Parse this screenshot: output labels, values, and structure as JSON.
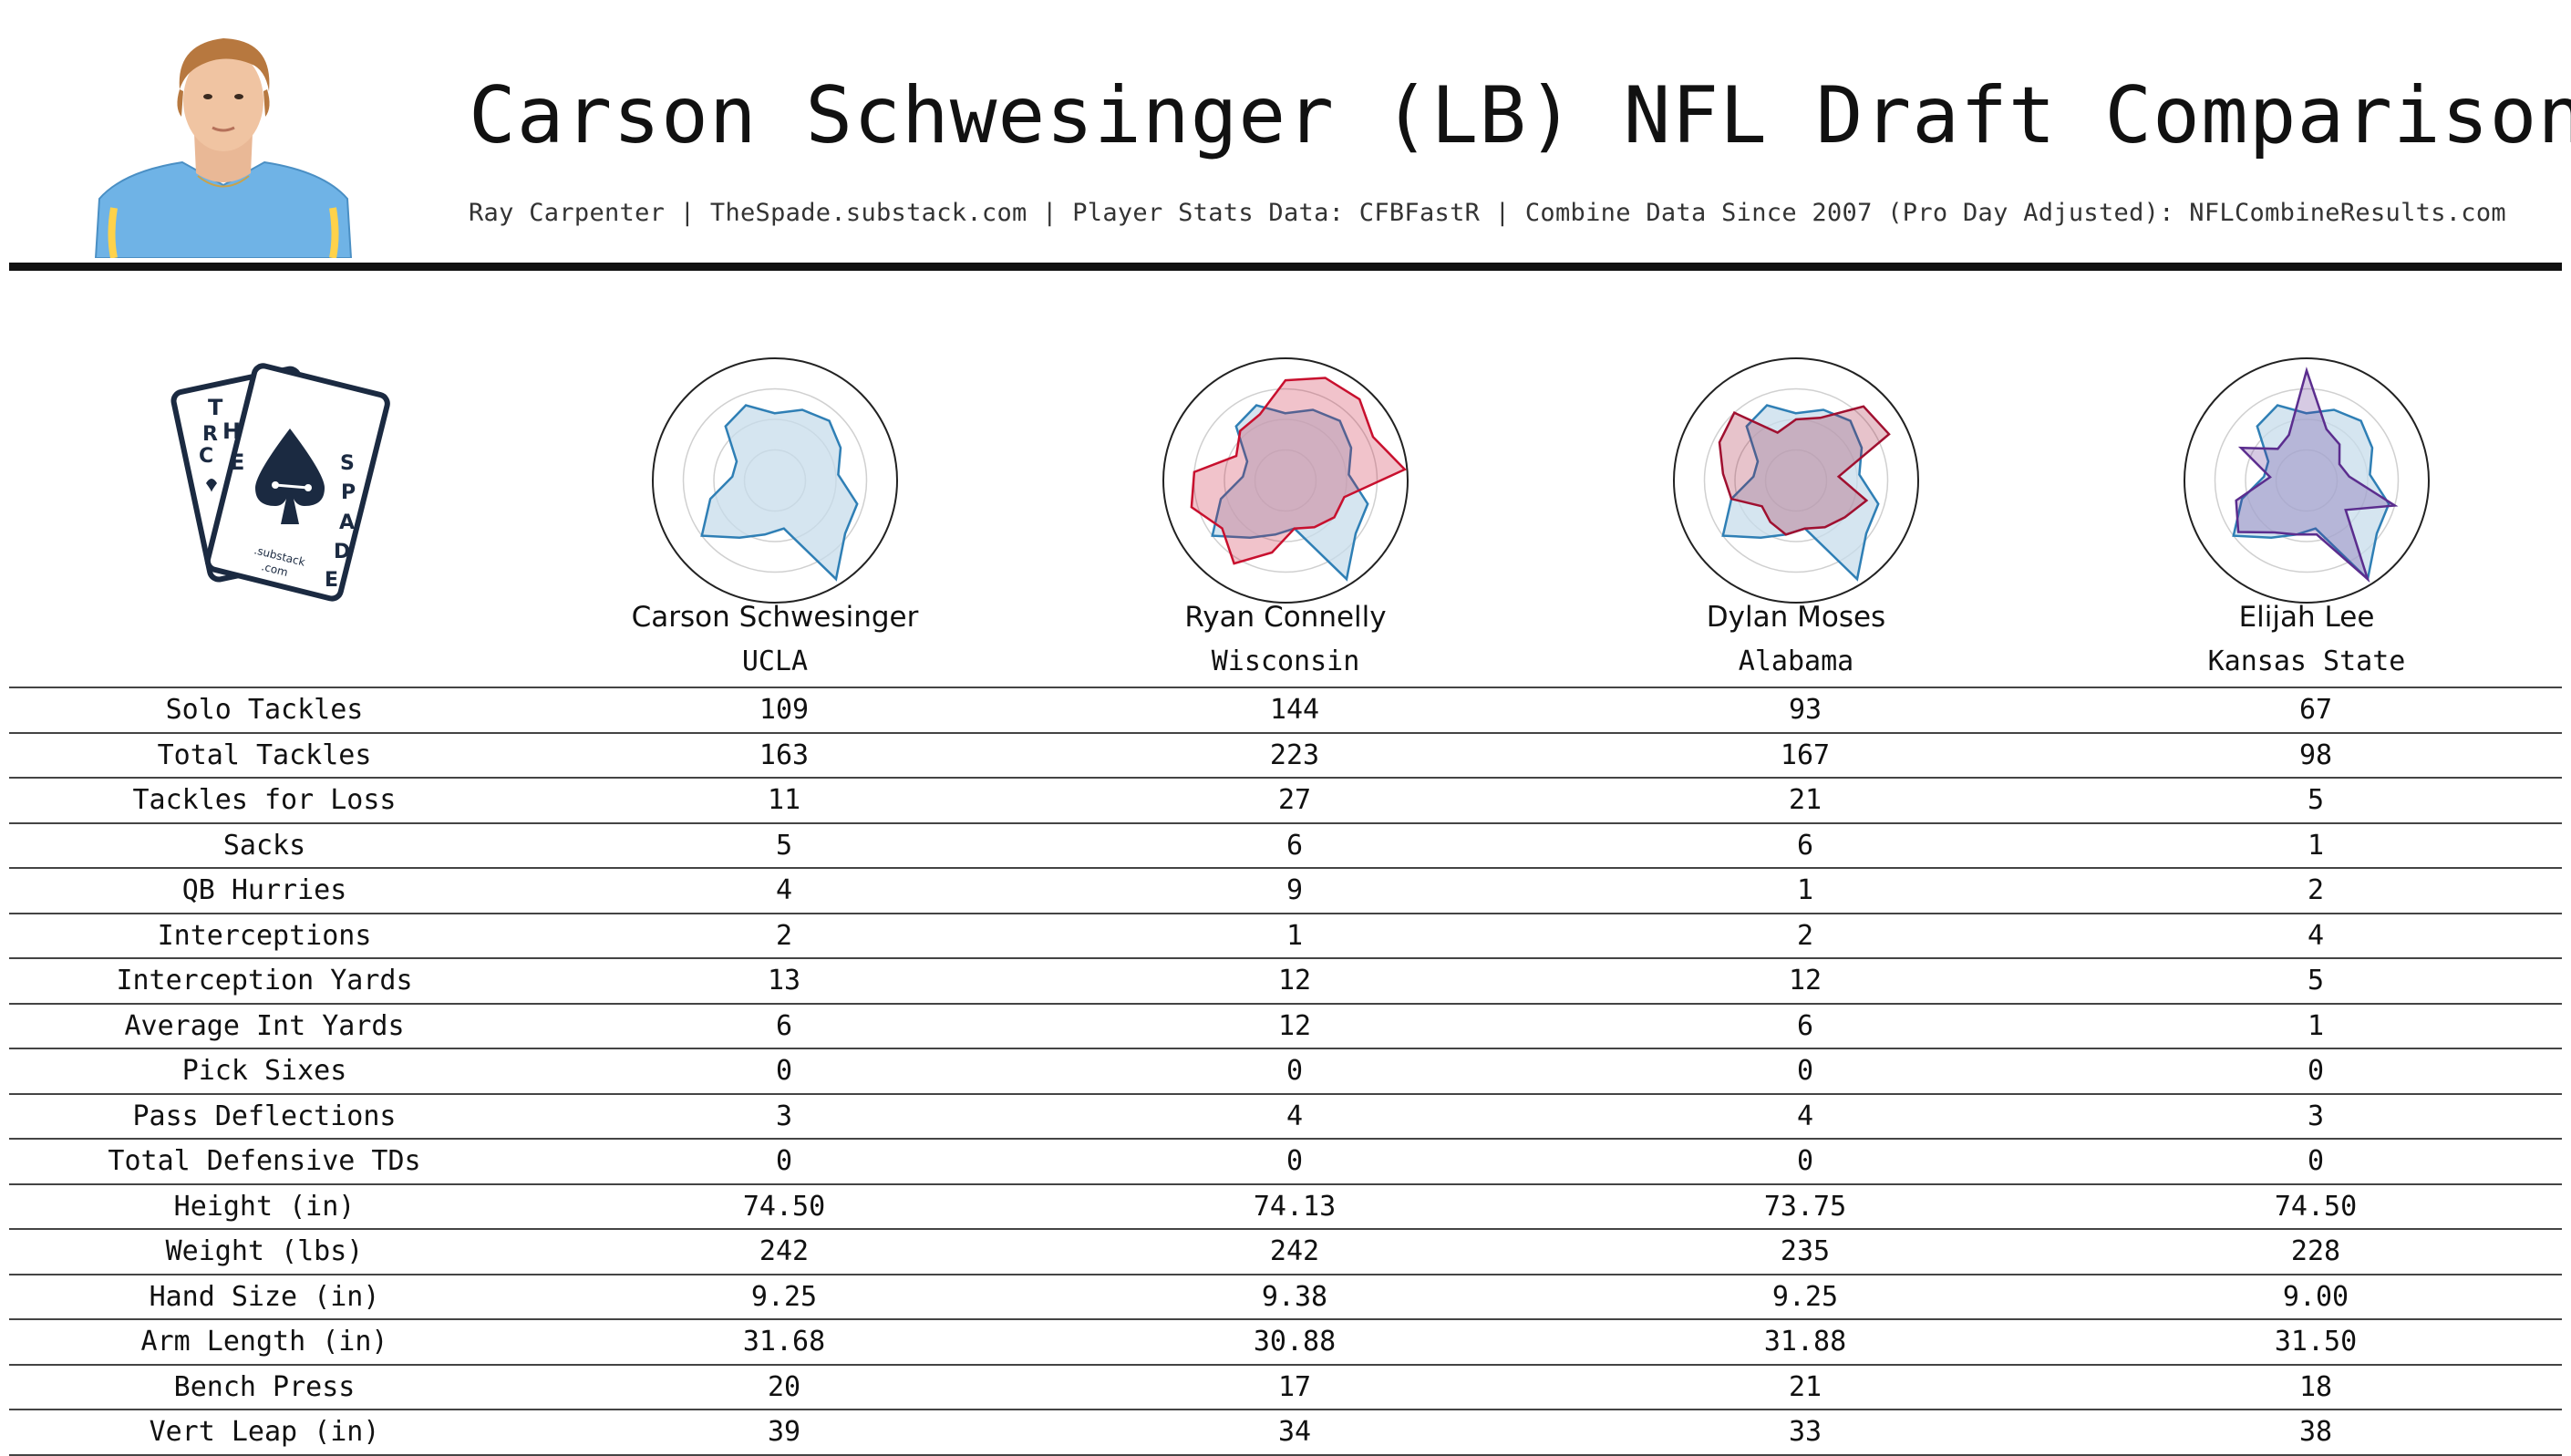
{
  "header": {
    "title": "Carson Schwesinger (LB) NFL Draft Comparison",
    "subtitle": "Ray Carpenter | TheSpade.substack.com | Player Stats Data: CFBFastR | Combine Data Since 2007 (Pro Day Adjusted): NFLCombineResults.com"
  },
  "logo": {
    "card_back_text": "R C",
    "card_front_text": "THE SPADE",
    "letters_top": [
      "T",
      "H",
      "E"
    ],
    "letters_side": [
      "S",
      "P",
      "A",
      "D",
      "E"
    ],
    "small_text_1": ".substack",
    "small_text_2": ".com"
  },
  "colors": {
    "primary_blue": "#2f7fb5",
    "blue_fill": "#c7dceb",
    "red": "#c8102e",
    "purple": "#5b2d8e",
    "navy": "#1b2a41"
  },
  "players": [
    {
      "name": "Carson Schwesinger",
      "school": "UCLA",
      "color": "#2f7fb5"
    },
    {
      "name": "Ryan Connelly",
      "school": "Wisconsin",
      "color": "#c8102e"
    },
    {
      "name": "Dylan Moses",
      "school": "Alabama",
      "color": "#a01030"
    },
    {
      "name": "Elijah Lee",
      "school": "Kansas State",
      "color": "#5b2d8e"
    }
  ],
  "chart_data": {
    "type": "table",
    "columns": [
      "",
      "Carson Schwesinger",
      "Ryan Connelly",
      "Dylan Moses",
      "Elijah Lee"
    ],
    "rows": [
      {
        "label": "Solo Tackles",
        "values": [
          "109",
          "144",
          "93",
          "67"
        ]
      },
      {
        "label": "Total Tackles",
        "values": [
          "163",
          "223",
          "167",
          "98"
        ]
      },
      {
        "label": "Tackles for Loss",
        "values": [
          "11",
          "27",
          "21",
          "5"
        ]
      },
      {
        "label": "Sacks",
        "values": [
          "5",
          "6",
          "6",
          "1"
        ]
      },
      {
        "label": "QB Hurries",
        "values": [
          "4",
          "9",
          "1",
          "2"
        ]
      },
      {
        "label": "Interceptions",
        "values": [
          "2",
          "1",
          "2",
          "4"
        ]
      },
      {
        "label": "Interception Yards",
        "values": [
          "13",
          "12",
          "12",
          "5"
        ]
      },
      {
        "label": "Average Int Yards",
        "values": [
          "6",
          "12",
          "6",
          "1"
        ]
      },
      {
        "label": "Pick Sixes",
        "values": [
          "0",
          "0",
          "0",
          "0"
        ]
      },
      {
        "label": "Pass Deflections",
        "values": [
          "3",
          "4",
          "4",
          "3"
        ]
      },
      {
        "label": "Total Defensive TDs",
        "values": [
          "0",
          "0",
          "0",
          "0"
        ]
      },
      {
        "label": "Height (in)",
        "values": [
          "74.50",
          "74.13",
          "73.75",
          "74.50"
        ]
      },
      {
        "label": "Weight (lbs)",
        "values": [
          "242",
          "242",
          "235",
          "228"
        ]
      },
      {
        "label": "Hand Size (in)",
        "values": [
          "9.25",
          "9.38",
          "9.25",
          "9.00"
        ]
      },
      {
        "label": "Arm Length (in)",
        "values": [
          "31.68",
          "30.88",
          "31.88",
          "31.50"
        ]
      },
      {
        "label": "Bench Press",
        "values": [
          "20",
          "17",
          "21",
          "18"
        ]
      },
      {
        "label": "Vert Leap (in)",
        "values": [
          "39",
          "34",
          "33",
          "38"
        ]
      }
    ],
    "radar": {
      "type": "radar",
      "axis_count": 17,
      "rlim": [
        0,
        1
      ],
      "rings": 4,
      "charts": [
        {
          "base": [
            0.55,
            0.62,
            0.66,
            0.6,
            0.52,
            0.7,
            0.72,
            0.95,
            0.4,
            0.45,
            0.55,
            0.75,
            0.55,
            0.35,
            0.35,
            0.6,
            0.66
          ],
          "compare": null
        },
        {
          "base": [
            0.55,
            0.62,
            0.66,
            0.6,
            0.52,
            0.7,
            0.72,
            0.95,
            0.4,
            0.45,
            0.55,
            0.75,
            0.55,
            0.35,
            0.35,
            0.6,
            0.66
          ],
          "compare": [
            0.82,
            0.9,
            0.9,
            0.8,
            0.98,
            0.5,
            0.5,
            0.45,
            0.4,
            0.6,
            0.8,
            0.65,
            0.8,
            0.75,
            0.45,
            0.55,
            0.58
          ]
        },
        {
          "base": [
            0.55,
            0.62,
            0.66,
            0.6,
            0.52,
            0.7,
            0.72,
            0.95,
            0.4,
            0.45,
            0.55,
            0.75,
            0.55,
            0.35,
            0.35,
            0.6,
            0.66
          ],
          "compare": [
            0.5,
            0.55,
            0.82,
            0.85,
            0.35,
            0.6,
            0.5,
            0.45,
            0.4,
            0.45,
            0.4,
            0.35,
            0.55,
            0.6,
            0.7,
            0.75,
            0.42
          ]
        },
        {
          "base": [
            0.55,
            0.62,
            0.66,
            0.6,
            0.52,
            0.7,
            0.72,
            0.95,
            0.4,
            0.45,
            0.55,
            0.75,
            0.55,
            0.35,
            0.35,
            0.6,
            0.66
          ],
          "compare": [
            0.9,
            0.45,
            0.4,
            0.3,
            0.35,
            0.75,
            0.4,
            0.95,
            0.45,
            0.45,
            0.5,
            0.7,
            0.6,
            0.3,
            0.6,
            0.35,
            0.4
          ]
        }
      ]
    }
  }
}
